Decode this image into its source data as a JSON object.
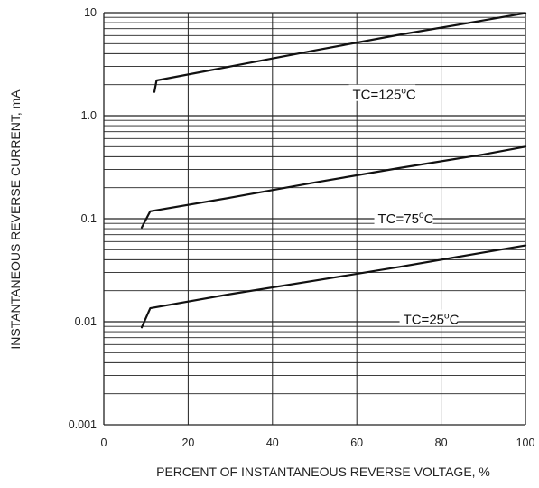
{
  "chart_data": {
    "type": "line",
    "xlabel": "PERCENT OF INSTANTANEOUS REVERSE VOLTAGE, %",
    "ylabel": "INSTANTANEOUS REVERSE CURRENT, mA",
    "xlim": [
      0,
      100
    ],
    "ylim": [
      0.001,
      10
    ],
    "yscale": "log",
    "grid": "horizontal-log-minor + vertical-major",
    "x_ticks": [
      {
        "v": 0,
        "label": "0"
      },
      {
        "v": 20,
        "label": "20"
      },
      {
        "v": 40,
        "label": "40"
      },
      {
        "v": 60,
        "label": "60"
      },
      {
        "v": 80,
        "label": "80"
      },
      {
        "v": 100,
        "label": "100"
      }
    ],
    "y_ticks": [
      {
        "v": 0.001,
        "label": "0.001"
      },
      {
        "v": 0.01,
        "label": "0.01"
      },
      {
        "v": 0.1,
        "label": "0.1"
      },
      {
        "v": 1,
        "label": "1.0"
      },
      {
        "v": 10,
        "label": "10"
      }
    ],
    "series": [
      {
        "name": "TC=125°C",
        "label_main": "TC=125",
        "label_sup": "o",
        "label_tail": "C",
        "label_at": {
          "x": 59,
          "y": 1.6
        },
        "points": [
          [
            12,
            1.7
          ],
          [
            12.5,
            2.2
          ],
          [
            30,
            3.0
          ],
          [
            50,
            4.3
          ],
          [
            70,
            6.1
          ],
          [
            90,
            8.4
          ],
          [
            100,
            9.9
          ]
        ]
      },
      {
        "name": "TC=75°C",
        "label_main": "TC=75",
        "label_sup": "o",
        "label_tail": "C",
        "label_at": {
          "x": 65,
          "y": 0.1
        },
        "points": [
          [
            9,
            0.082
          ],
          [
            11,
            0.118
          ],
          [
            30,
            0.16
          ],
          [
            50,
            0.225
          ],
          [
            70,
            0.31
          ],
          [
            90,
            0.42
          ],
          [
            100,
            0.5
          ]
        ]
      },
      {
        "name": "TC=25°C",
        "label_main": "TC=25",
        "label_sup": "o",
        "label_tail": "C",
        "label_at": {
          "x": 71,
          "y": 0.0105
        },
        "points": [
          [
            9,
            0.0088
          ],
          [
            11,
            0.0135
          ],
          [
            30,
            0.0185
          ],
          [
            50,
            0.025
          ],
          [
            70,
            0.034
          ],
          [
            90,
            0.047
          ],
          [
            100,
            0.055
          ]
        ]
      }
    ]
  }
}
